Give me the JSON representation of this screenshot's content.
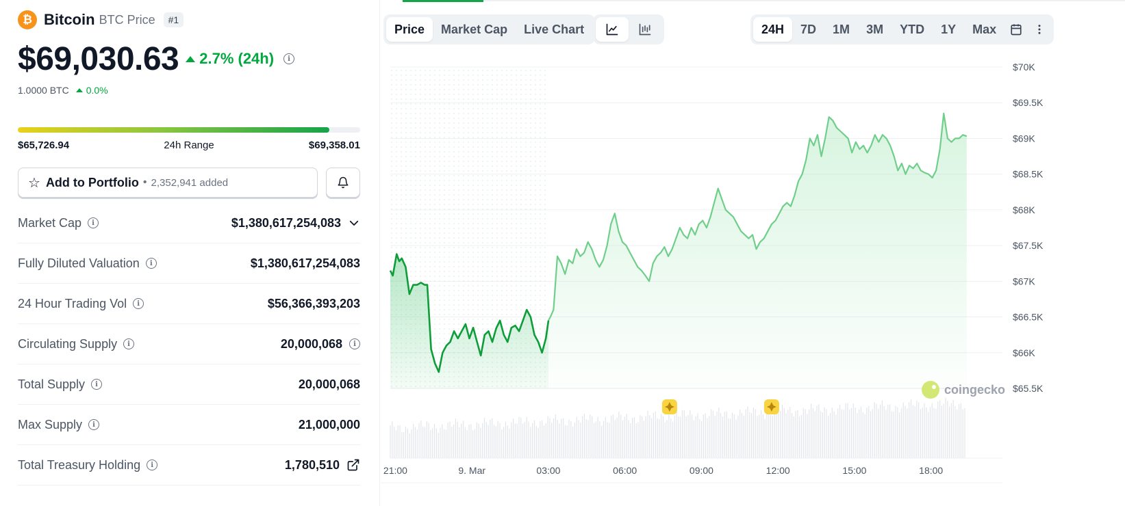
{
  "coin": {
    "name": "Bitcoin",
    "subtitle": "BTC Price",
    "rank": "#1",
    "logo_symbol": "₿",
    "price": "$69,030.63",
    "change_24h": "2.7% (24h)",
    "btc_value": "1.0000 BTC",
    "btc_change": "0.0%"
  },
  "range": {
    "low": "$65,726.94",
    "label": "24h Range",
    "high": "$69,358.01",
    "fill_percent": 91
  },
  "portfolio": {
    "button_label": "Add to Portfolio",
    "separator": "•",
    "added_count": "2,352,941 added"
  },
  "stats": [
    {
      "label": "Market Cap",
      "value": "$1,380,617,254,083",
      "after": "chevron-down-icon"
    },
    {
      "label": "Fully Diluted Valuation",
      "value": "$1,380,617,254,083",
      "after": ""
    },
    {
      "label": "24 Hour Trading Vol",
      "value": "$56,366,393,203",
      "after": ""
    },
    {
      "label": "Circulating Supply",
      "value": "20,000,068",
      "after": "info-icon"
    },
    {
      "label": "Total Supply",
      "value": "20,000,068",
      "after": ""
    },
    {
      "label": "Max Supply",
      "value": "21,000,000",
      "after": ""
    },
    {
      "label": "Total Treasury Holding",
      "value": "1,780,510",
      "after": "external-link-icon"
    }
  ],
  "chart_tabs": [
    "Price",
    "Market Cap",
    "Live Chart"
  ],
  "chart_tabs_active": "Price",
  "chart_type_icons": [
    "line-chart-icon",
    "candlestick-chart-icon"
  ],
  "ranges": [
    "24H",
    "7D",
    "1M",
    "3M",
    "YTD",
    "1Y",
    "Max"
  ],
  "range_active": "24H",
  "toolbar_icons": [
    "calendar-icon",
    "more-vertical-icon"
  ],
  "colors": {
    "up": "#00a83e",
    "line_light": "#6fcf8a",
    "line_dark": "#0e9d3a",
    "brand": "#f7931a"
  },
  "chart_data": {
    "type": "line",
    "title": "",
    "xlabel": "",
    "ylabel": "",
    "ylim": [
      65500,
      70000
    ],
    "yticks": [
      70000,
      69500,
      69000,
      68500,
      68000,
      67500,
      67000,
      66500,
      66000,
      65500
    ],
    "ytick_labels": [
      "$70K",
      "$69.5K",
      "$69K",
      "$68.5K",
      "$68K",
      "$67.5K",
      "$67K",
      "$66.5K",
      "$66K",
      "$65.5K"
    ],
    "x_range_hours": [
      -3.2,
      20.8
    ],
    "xtick_hours": [
      -3,
      0,
      3,
      6,
      9,
      12,
      15,
      18
    ],
    "xtick_labels": [
      "21:00",
      "9. Mar",
      "03:00",
      "06:00",
      "09:00",
      "12:00",
      "15:00",
      "18:00"
    ],
    "highlight_until_hour": 3.0,
    "series": [
      {
        "name": "BTC Price (USD)",
        "points": [
          [
            -3.2,
            67150
          ],
          [
            -3.1,
            67080
          ],
          [
            -2.95,
            67380
          ],
          [
            -2.85,
            67280
          ],
          [
            -2.75,
            67320
          ],
          [
            -2.6,
            67200
          ],
          [
            -2.45,
            66820
          ],
          [
            -2.3,
            66950
          ],
          [
            -2.15,
            66950
          ],
          [
            -2.0,
            66980
          ],
          [
            -1.85,
            66950
          ],
          [
            -1.75,
            66950
          ],
          [
            -1.6,
            66050
          ],
          [
            -1.45,
            65850
          ],
          [
            -1.3,
            65730
          ],
          [
            -1.15,
            66000
          ],
          [
            -1.0,
            66100
          ],
          [
            -0.85,
            66150
          ],
          [
            -0.7,
            66300
          ],
          [
            -0.55,
            66200
          ],
          [
            -0.4,
            66300
          ],
          [
            -0.25,
            66400
          ],
          [
            -0.1,
            66200
          ],
          [
            0.05,
            66350
          ],
          [
            0.2,
            66150
          ],
          [
            0.35,
            65960
          ],
          [
            0.5,
            66250
          ],
          [
            0.65,
            66300
          ],
          [
            0.8,
            66150
          ],
          [
            0.95,
            66340
          ],
          [
            1.1,
            66450
          ],
          [
            1.25,
            66250
          ],
          [
            1.4,
            66150
          ],
          [
            1.55,
            66350
          ],
          [
            1.7,
            66380
          ],
          [
            1.85,
            66300
          ],
          [
            2.0,
            66450
          ],
          [
            2.15,
            66600
          ],
          [
            2.3,
            66500
          ],
          [
            2.45,
            66250
          ],
          [
            2.6,
            66150
          ],
          [
            2.75,
            66000
          ],
          [
            2.9,
            66200
          ],
          [
            3.0,
            66450
          ],
          [
            3.1,
            66520
          ],
          [
            3.2,
            66600
          ],
          [
            3.35,
            67350
          ],
          [
            3.5,
            67250
          ],
          [
            3.65,
            67100
          ],
          [
            3.8,
            67300
          ],
          [
            3.95,
            67250
          ],
          [
            4.1,
            67450
          ],
          [
            4.25,
            67350
          ],
          [
            4.4,
            67400
          ],
          [
            4.55,
            67550
          ],
          [
            4.7,
            67450
          ],
          [
            4.85,
            67300
          ],
          [
            5.0,
            67200
          ],
          [
            5.15,
            67300
          ],
          [
            5.3,
            67500
          ],
          [
            5.45,
            67800
          ],
          [
            5.6,
            67950
          ],
          [
            5.75,
            67700
          ],
          [
            5.9,
            67550
          ],
          [
            6.05,
            67500
          ],
          [
            6.2,
            67400
          ],
          [
            6.35,
            67300
          ],
          [
            6.5,
            67200
          ],
          [
            6.65,
            67150
          ],
          [
            6.8,
            67080
          ],
          [
            6.95,
            67000
          ],
          [
            7.1,
            67250
          ],
          [
            7.25,
            67350
          ],
          [
            7.4,
            67400
          ],
          [
            7.55,
            67480
          ],
          [
            7.7,
            67350
          ],
          [
            7.85,
            67450
          ],
          [
            8.0,
            67600
          ],
          [
            8.15,
            67750
          ],
          [
            8.3,
            67650
          ],
          [
            8.45,
            67600
          ],
          [
            8.6,
            67750
          ],
          [
            8.75,
            67650
          ],
          [
            8.9,
            67800
          ],
          [
            9.05,
            67850
          ],
          [
            9.2,
            67750
          ],
          [
            9.35,
            67900
          ],
          [
            9.5,
            68100
          ],
          [
            9.65,
            68300
          ],
          [
            9.8,
            68150
          ],
          [
            9.95,
            68000
          ],
          [
            10.1,
            67950
          ],
          [
            10.25,
            67900
          ],
          [
            10.4,
            67800
          ],
          [
            10.55,
            67700
          ],
          [
            10.7,
            67650
          ],
          [
            10.85,
            67600
          ],
          [
            11.0,
            67650
          ],
          [
            11.15,
            67450
          ],
          [
            11.3,
            67550
          ],
          [
            11.45,
            67600
          ],
          [
            11.6,
            67700
          ],
          [
            11.75,
            67800
          ],
          [
            11.9,
            67850
          ],
          [
            12.05,
            67950
          ],
          [
            12.2,
            68050
          ],
          [
            12.35,
            68100
          ],
          [
            12.5,
            68050
          ],
          [
            12.65,
            68200
          ],
          [
            12.8,
            68400
          ],
          [
            12.95,
            68500
          ],
          [
            13.1,
            68700
          ],
          [
            13.25,
            69000
          ],
          [
            13.4,
            68900
          ],
          [
            13.55,
            69050
          ],
          [
            13.7,
            68750
          ],
          [
            13.85,
            69000
          ],
          [
            14.0,
            69300
          ],
          [
            14.15,
            69250
          ],
          [
            14.3,
            69150
          ],
          [
            14.45,
            69100
          ],
          [
            14.6,
            69050
          ],
          [
            14.75,
            69000
          ],
          [
            14.9,
            68800
          ],
          [
            15.05,
            68950
          ],
          [
            15.2,
            68850
          ],
          [
            15.35,
            68900
          ],
          [
            15.5,
            68800
          ],
          [
            15.65,
            68900
          ],
          [
            15.8,
            69050
          ],
          [
            15.95,
            68950
          ],
          [
            16.1,
            69050
          ],
          [
            16.25,
            69000
          ],
          [
            16.4,
            68900
          ],
          [
            16.55,
            68750
          ],
          [
            16.7,
            68550
          ],
          [
            16.85,
            68650
          ],
          [
            17.0,
            68500
          ],
          [
            17.15,
            68620
          ],
          [
            17.3,
            68580
          ],
          [
            17.45,
            68650
          ],
          [
            17.6,
            68550
          ],
          [
            17.75,
            68520
          ],
          [
            17.9,
            68500
          ],
          [
            18.05,
            68450
          ],
          [
            18.2,
            68550
          ],
          [
            18.35,
            68850
          ],
          [
            18.5,
            69350
          ],
          [
            18.65,
            69000
          ],
          [
            18.8,
            68950
          ],
          [
            18.95,
            69000
          ],
          [
            19.1,
            69000
          ],
          [
            19.25,
            69050
          ],
          [
            19.4,
            69030
          ]
        ]
      }
    ],
    "volume_note": "volume bars shown beneath price line"
  },
  "watermark": "coingecko"
}
